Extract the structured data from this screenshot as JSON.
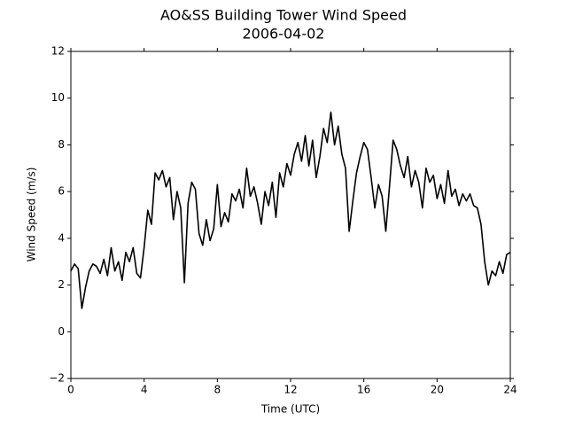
{
  "chart_data": {
    "type": "line",
    "title": "AO&SS Building Tower Wind Speed",
    "subtitle": "2006-04-02",
    "x_label": "Time (UTC)",
    "y_label": "Wind Speed (m/s)",
    "x": [
      0,
      0.2,
      0.4,
      0.6,
      0.8,
      1,
      1.2,
      1.4,
      1.6,
      1.8,
      2,
      2.2,
      2.4,
      2.6,
      2.8,
      3,
      3.2,
      3.4,
      3.6,
      3.8,
      4,
      4.2,
      4.4,
      4.6,
      4.8,
      5,
      5.2,
      5.4,
      5.6,
      5.8,
      6,
      6.2,
      6.4,
      6.6,
      6.8,
      7,
      7.2,
      7.4,
      7.6,
      7.8,
      8,
      8.2,
      8.4,
      8.6,
      8.8,
      9,
      9.2,
      9.4,
      9.6,
      9.8,
      10,
      10.2,
      10.4,
      10.6,
      10.8,
      11,
      11.2,
      11.4,
      11.6,
      11.8,
      12,
      12.2,
      12.4,
      12.6,
      12.8,
      13,
      13.2,
      13.4,
      13.6,
      13.8,
      14,
      14.2,
      14.4,
      14.6,
      14.8,
      15,
      15.2,
      15.4,
      15.6,
      15.8,
      16,
      16.2,
      16.4,
      16.6,
      16.8,
      17,
      17.2,
      17.4,
      17.6,
      17.8,
      18,
      18.2,
      18.4,
      18.6,
      18.8,
      19,
      19.2,
      19.4,
      19.6,
      19.8,
      20,
      20.2,
      20.4,
      20.6,
      20.8,
      21,
      21.2,
      21.4,
      21.6,
      21.8,
      22,
      22.2,
      22.4,
      22.6,
      22.8,
      23,
      23.2,
      23.4,
      23.6,
      23.8,
      24
    ],
    "series": [
      {
        "name": "Wind Speed",
        "color": "#000000",
        "values": [
          2.6,
          2.9,
          2.7,
          1.0,
          1.9,
          2.6,
          2.9,
          2.8,
          2.5,
          3.1,
          2.4,
          3.6,
          2.6,
          3.0,
          2.2,
          3.4,
          3.0,
          3.6,
          2.5,
          2.3,
          3.6,
          5.2,
          4.6,
          6.8,
          6.5,
          6.9,
          6.2,
          6.6,
          4.8,
          6.0,
          5.3,
          2.1,
          5.5,
          6.4,
          6.1,
          4.2,
          3.7,
          4.8,
          3.9,
          4.4,
          6.3,
          4.5,
          5.1,
          4.7,
          5.9,
          5.6,
          6.1,
          5.3,
          7.0,
          5.8,
          6.2,
          5.5,
          4.6,
          6.0,
          5.4,
          6.4,
          4.9,
          6.8,
          6.2,
          7.2,
          6.7,
          7.6,
          8.1,
          7.3,
          8.4,
          7.1,
          8.2,
          6.6,
          7.5,
          8.7,
          8.1,
          9.4,
          8.0,
          8.8,
          7.6,
          7.0,
          4.3,
          5.6,
          6.8,
          7.5,
          8.1,
          7.8,
          6.6,
          5.3,
          6.3,
          5.8,
          4.3,
          6.2,
          8.2,
          7.8,
          7.1,
          6.6,
          7.5,
          6.2,
          6.9,
          6.4,
          5.3,
          7.0,
          6.4,
          6.7,
          5.7,
          6.3,
          5.5,
          6.9,
          5.8,
          6.1,
          5.4,
          5.9,
          5.6,
          5.9,
          5.4,
          5.3,
          4.6,
          3.0,
          2.0,
          2.6,
          2.4,
          3.0,
          2.5,
          3.3,
          3.4
        ]
      }
    ],
    "xlim": [
      0,
      24
    ],
    "xticks": [
      0,
      4,
      8,
      12,
      16,
      20,
      24
    ],
    "ylim": [
      -2,
      12
    ],
    "yticks": [
      {
        "value": -2,
        "label": "−2"
      },
      0,
      2,
      4,
      6,
      8,
      10,
      12
    ]
  }
}
